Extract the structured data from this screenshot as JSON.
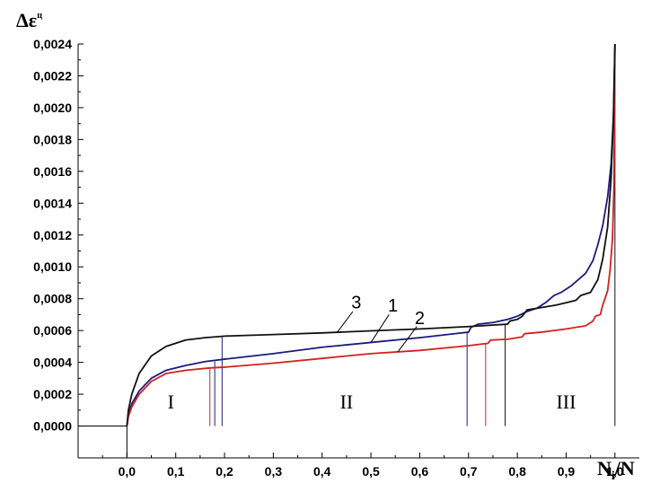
{
  "chart_data": {
    "type": "line",
    "title": "",
    "xlabel_main": "N",
    "xlabel_sub": "i",
    "xlabel_tail": "/N",
    "ylabel_main": "Δε",
    "ylabel_sup": "ц",
    "xlim": [
      -0.1,
      1.05
    ],
    "ylim": [
      -0.0002,
      0.0024
    ],
    "x_ticks": [
      0.0,
      0.1,
      0.2,
      0.3,
      0.4,
      0.5,
      0.6,
      0.7,
      0.8,
      0.9,
      1.0
    ],
    "x_tick_labels": [
      "0,0",
      "0,1",
      "0,2",
      "0,3",
      "0,4",
      "0,5",
      "0,6",
      "0,7",
      "0,8",
      "0,9",
      "1,0"
    ],
    "y_ticks": [
      0.0,
      0.0002,
      0.0004,
      0.0006,
      0.0008,
      0.001,
      0.0012,
      0.0014,
      0.0016,
      0.0018,
      0.002,
      0.0022,
      0.0024
    ],
    "y_tick_labels": [
      "0,0000",
      "0,0002",
      "0,0004",
      "0,0006",
      "0,0008",
      "0,0010",
      "0,0012",
      "0,0014",
      "0,0016",
      "0,0018",
      "0,0020",
      "0,0022",
      "0,0024"
    ],
    "grid": false,
    "series": [
      {
        "label": "1",
        "color": "#1a1a80",
        "points": [
          [
            0.0,
            0.0
          ],
          [
            0.003,
            7e-05
          ],
          [
            0.01,
            0.00014
          ],
          [
            0.025,
            0.00022
          ],
          [
            0.05,
            0.0003
          ],
          [
            0.08,
            0.00035
          ],
          [
            0.12,
            0.00038
          ],
          [
            0.16,
            0.000405
          ],
          [
            0.2,
            0.00042
          ],
          [
            0.3,
            0.000455
          ],
          [
            0.4,
            0.000495
          ],
          [
            0.5,
            0.000525
          ],
          [
            0.6,
            0.000555
          ],
          [
            0.7,
            0.00059
          ],
          [
            0.705,
            0.00062
          ],
          [
            0.72,
            0.00064
          ],
          [
            0.75,
            0.00065
          ],
          [
            0.78,
            0.00067
          ],
          [
            0.8,
            0.00069
          ],
          [
            0.82,
            0.00072
          ],
          [
            0.84,
            0.00074
          ],
          [
            0.86,
            0.00078
          ],
          [
            0.875,
            0.00082
          ],
          [
            0.89,
            0.00084
          ],
          [
            0.91,
            0.00088
          ],
          [
            0.925,
            0.00092
          ],
          [
            0.94,
            0.00096
          ],
          [
            0.955,
            0.00104
          ],
          [
            0.965,
            0.00114
          ],
          [
            0.975,
            0.00126
          ],
          [
            0.985,
            0.00144
          ],
          [
            0.992,
            0.00164
          ],
          [
            0.997,
            0.00196
          ],
          [
            1.0,
            0.0024
          ]
        ]
      },
      {
        "label": "2",
        "color": "#d42020",
        "points": [
          [
            0.0,
            0.0
          ],
          [
            0.003,
            6e-05
          ],
          [
            0.01,
            0.00012
          ],
          [
            0.025,
            0.0002
          ],
          [
            0.05,
            0.00028
          ],
          [
            0.08,
            0.00033
          ],
          [
            0.12,
            0.00035
          ],
          [
            0.17,
            0.000365
          ],
          [
            0.2,
            0.00037
          ],
          [
            0.3,
            0.000395
          ],
          [
            0.4,
            0.000425
          ],
          [
            0.5,
            0.000455
          ],
          [
            0.6,
            0.000475
          ],
          [
            0.7,
            0.000505
          ],
          [
            0.74,
            0.00052
          ],
          [
            0.745,
            0.00054
          ],
          [
            0.78,
            0.000545
          ],
          [
            0.81,
            0.00056
          ],
          [
            0.815,
            0.00058
          ],
          [
            0.85,
            0.00059
          ],
          [
            0.9,
            0.00061
          ],
          [
            0.94,
            0.00063
          ],
          [
            0.955,
            0.00066
          ],
          [
            0.96,
            0.00069
          ],
          [
            0.97,
            0.0007
          ],
          [
            0.975,
            0.00076
          ],
          [
            0.985,
            0.00085
          ],
          [
            0.99,
            0.00098
          ],
          [
            0.995,
            0.00118
          ],
          [
            0.998,
            0.0015
          ],
          [
            1.0,
            0.0024
          ]
        ]
      },
      {
        "label": "3",
        "color": "#111111",
        "points": [
          [
            0.0,
            0.0
          ],
          [
            0.003,
            0.0001
          ],
          [
            0.01,
            0.0002
          ],
          [
            0.025,
            0.00033
          ],
          [
            0.05,
            0.00044
          ],
          [
            0.08,
            0.0005
          ],
          [
            0.12,
            0.00054
          ],
          [
            0.16,
            0.000555
          ],
          [
            0.2,
            0.000565
          ],
          [
            0.3,
            0.000575
          ],
          [
            0.4,
            0.000585
          ],
          [
            0.5,
            0.000598
          ],
          [
            0.6,
            0.00061
          ],
          [
            0.7,
            0.000625
          ],
          [
            0.78,
            0.00064
          ],
          [
            0.785,
            0.00066
          ],
          [
            0.8,
            0.00067
          ],
          [
            0.81,
            0.00069
          ],
          [
            0.82,
            0.00073
          ],
          [
            0.84,
            0.00074
          ],
          [
            0.88,
            0.00076
          ],
          [
            0.92,
            0.00079
          ],
          [
            0.93,
            0.00082
          ],
          [
            0.95,
            0.00084
          ],
          [
            0.965,
            0.00092
          ],
          [
            0.975,
            0.00105
          ],
          [
            0.985,
            0.00125
          ],
          [
            0.992,
            0.00155
          ],
          [
            0.997,
            0.00195
          ],
          [
            1.0,
            0.0024
          ]
        ]
      }
    ],
    "boundary_lines": [
      {
        "x": 0.17,
        "y": 0.000365,
        "color": "#d42020"
      },
      {
        "x": 0.18,
        "y": 0.000405,
        "color": "#1a1a80"
      },
      {
        "x": 0.195,
        "y": 0.000565,
        "color": "#1a1a80"
      },
      {
        "x": 0.697,
        "y": 0.00059,
        "color": "#1a1a80"
      },
      {
        "x": 0.735,
        "y": 0.00052,
        "color": "#d42020"
      },
      {
        "x": 0.775,
        "y": 0.00064,
        "color": "#111111"
      },
      {
        "x": 1.0,
        "y": 0.0024,
        "color": "#111111"
      }
    ],
    "baseline": {
      "x_start": -0.1,
      "x_end": 0.0,
      "y": 0.0
    },
    "regions": [
      {
        "label": "I",
        "x": 0.09,
        "y": 0.00011
      },
      {
        "label": "II",
        "x": 0.45,
        "y": 0.00011
      },
      {
        "label": "III",
        "x": 0.9,
        "y": 0.00011
      }
    ],
    "curve_labels": [
      {
        "label": "3",
        "x": 0.47,
        "y": 0.00074,
        "line_x1": 0.463,
        "line_y1": 0.00072,
        "line_x2": 0.43,
        "line_y2": 0.000585
      },
      {
        "label": "1",
        "x": 0.545,
        "y": 0.00072,
        "line_x1": 0.537,
        "line_y1": 0.0007,
        "line_x2": 0.5,
        "line_y2": 0.000525
      },
      {
        "label": "2",
        "x": 0.6,
        "y": 0.00064,
        "line_x1": 0.594,
        "line_y1": 0.000625,
        "line_x2": 0.555,
        "line_y2": 0.000465
      }
    ]
  }
}
